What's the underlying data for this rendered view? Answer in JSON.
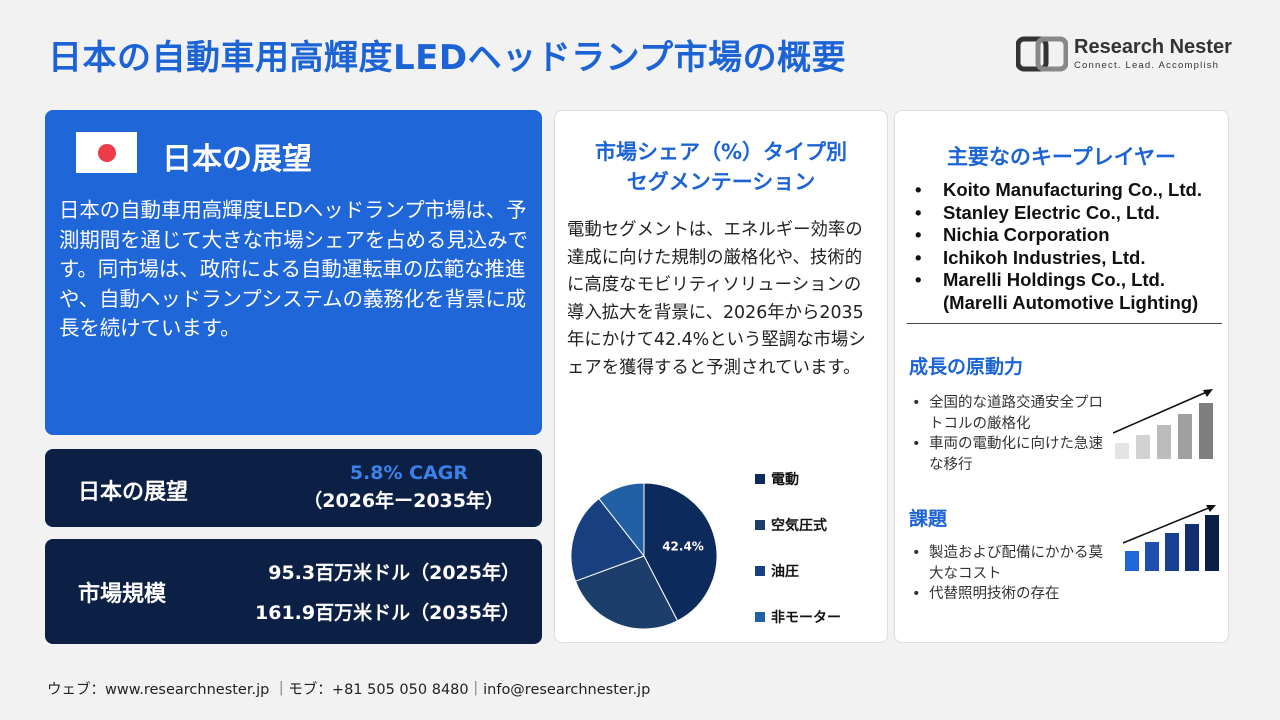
{
  "title": "日本の自動車用高輝度LEDヘッドランプ市場の概要",
  "logo": {
    "name": "Research Nester",
    "tagline": "Connect. Lead. Accomplish"
  },
  "outlook_panel": {
    "heading": "日本の展望",
    "description": "日本の自動車用高輝度LEDヘッドランプ市場は、予測期間を通じて大きな市場シェアを占める見込みです。同市場は、政府による自動運転車の広範な推進や、自動ヘッドランプシステムの義務化を背景に成長を続けています。"
  },
  "cagr_panel": {
    "label": "日本の展望",
    "cagr": "5.8% CAGR",
    "period": "（2026年ー2035年）"
  },
  "size_panel": {
    "label": "市場規模",
    "value_2025": "95.3百万米ドル（2025年）",
    "value_2035": "161.9百万米ドル（2035年）"
  },
  "segment_panel": {
    "heading_line1": "市場シェア（%）タイプ別",
    "heading_line2": "セグメンテーション",
    "description": "電動セグメントは、エネルギー効率の達成に向けた規制の厳格化や、技術的に高度なモビリティソリューションの導入拡大を背景に、2026年から2035年にかけて42.4%という堅調な市場シェアを獲得すると予測されています。"
  },
  "chart_data": {
    "type": "pie",
    "categories": [
      "電動",
      "空気圧式",
      "油圧",
      "非モーター"
    ],
    "values": [
      42.4,
      27,
      20,
      10.6
    ],
    "data_labels": [
      "42.4%",
      "",
      "",
      ""
    ],
    "colors": [
      "#0c2a5c",
      "#1d3d6b",
      "#183f7e",
      "#2160a4"
    ],
    "legend_position": "right"
  },
  "players_panel": {
    "heading": "主要なのキープレイヤー",
    "players": [
      "Koito Manufacturing Co., Ltd.",
      "Stanley Electric Co., Ltd.",
      "Nichia Corporation",
      "Ichikoh Industries, Ltd.",
      "Marelli Holdings Co., Ltd.",
      "(Marelli Automotive Lighting)"
    ]
  },
  "drivers": {
    "heading": "成長の原動力",
    "items": [
      "全国的な道路交通安全プロトコルの厳格化",
      "車両の電動化に向けた急速な移行"
    ]
  },
  "challenges": {
    "heading": "課題",
    "items": [
      "製造および配備にかかる莫大なコスト",
      "代替照明技術の存在"
    ]
  },
  "footer": "ウェブ：www.researchnester.jp ｜モブ：+81 505 050 8480｜info@researchnester.jp"
}
